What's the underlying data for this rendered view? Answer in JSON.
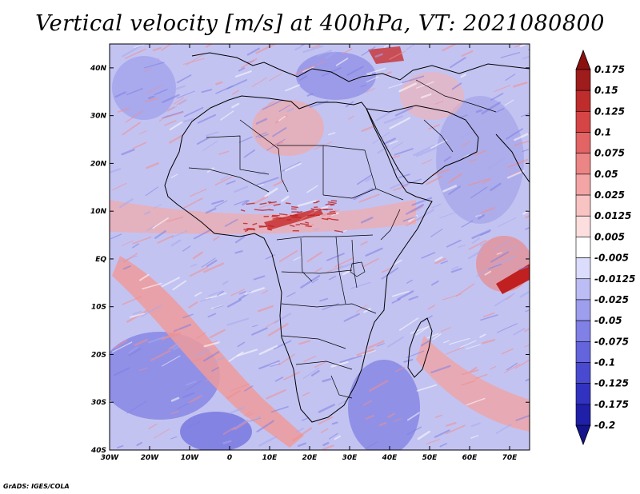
{
  "map": {
    "title": "Vertical velocity [m/s] at 400hPa, VT: 2021080800",
    "credit": "GrADS: IGES/COLA",
    "variable": "Vertical velocity",
    "units": "m/s",
    "level": "400hPa",
    "valid_time": "2021080800",
    "lon_range": [
      -30,
      75
    ],
    "lat_range": [
      -40,
      45
    ],
    "lon_ticks": [
      "30W",
      "20W",
      "10W",
      "0",
      "10E",
      "20E",
      "30E",
      "40E",
      "50E",
      "60E",
      "70E"
    ],
    "lat_ticks": [
      "40N",
      "30N",
      "20N",
      "10N",
      "EQ",
      "10S",
      "20S",
      "30S",
      "40S"
    ],
    "colorbar": {
      "labels": [
        "0.175",
        "0.15",
        "0.125",
        "0.1",
        "0.075",
        "0.05",
        "0.025",
        "0.0125",
        "0.005",
        "-0.005",
        "-0.0125",
        "-0.025",
        "-0.05",
        "-0.075",
        "-0.1",
        "-0.125",
        "-0.175",
        "-0.2"
      ],
      "colors": [
        "#9e1c1c",
        "#bf2c2c",
        "#d64545",
        "#e36464",
        "#ec8585",
        "#f3a5a5",
        "#f8c3c3",
        "#fcdede",
        "#ffffff",
        "#dcdcfc",
        "#bdbdf5",
        "#9e9eee",
        "#8080e6",
        "#6464dc",
        "#4a4ad0",
        "#3232c0",
        "#1f1fa8"
      ],
      "max_arrow_color": "#8b1010",
      "min_arrow_color": "#14148c"
    },
    "field_palette": {
      "background": "#c3c3f2",
      "ascent": "#ef8f8f",
      "strong_ascent": "#c02020",
      "descent": "#7f7fe3"
    }
  }
}
